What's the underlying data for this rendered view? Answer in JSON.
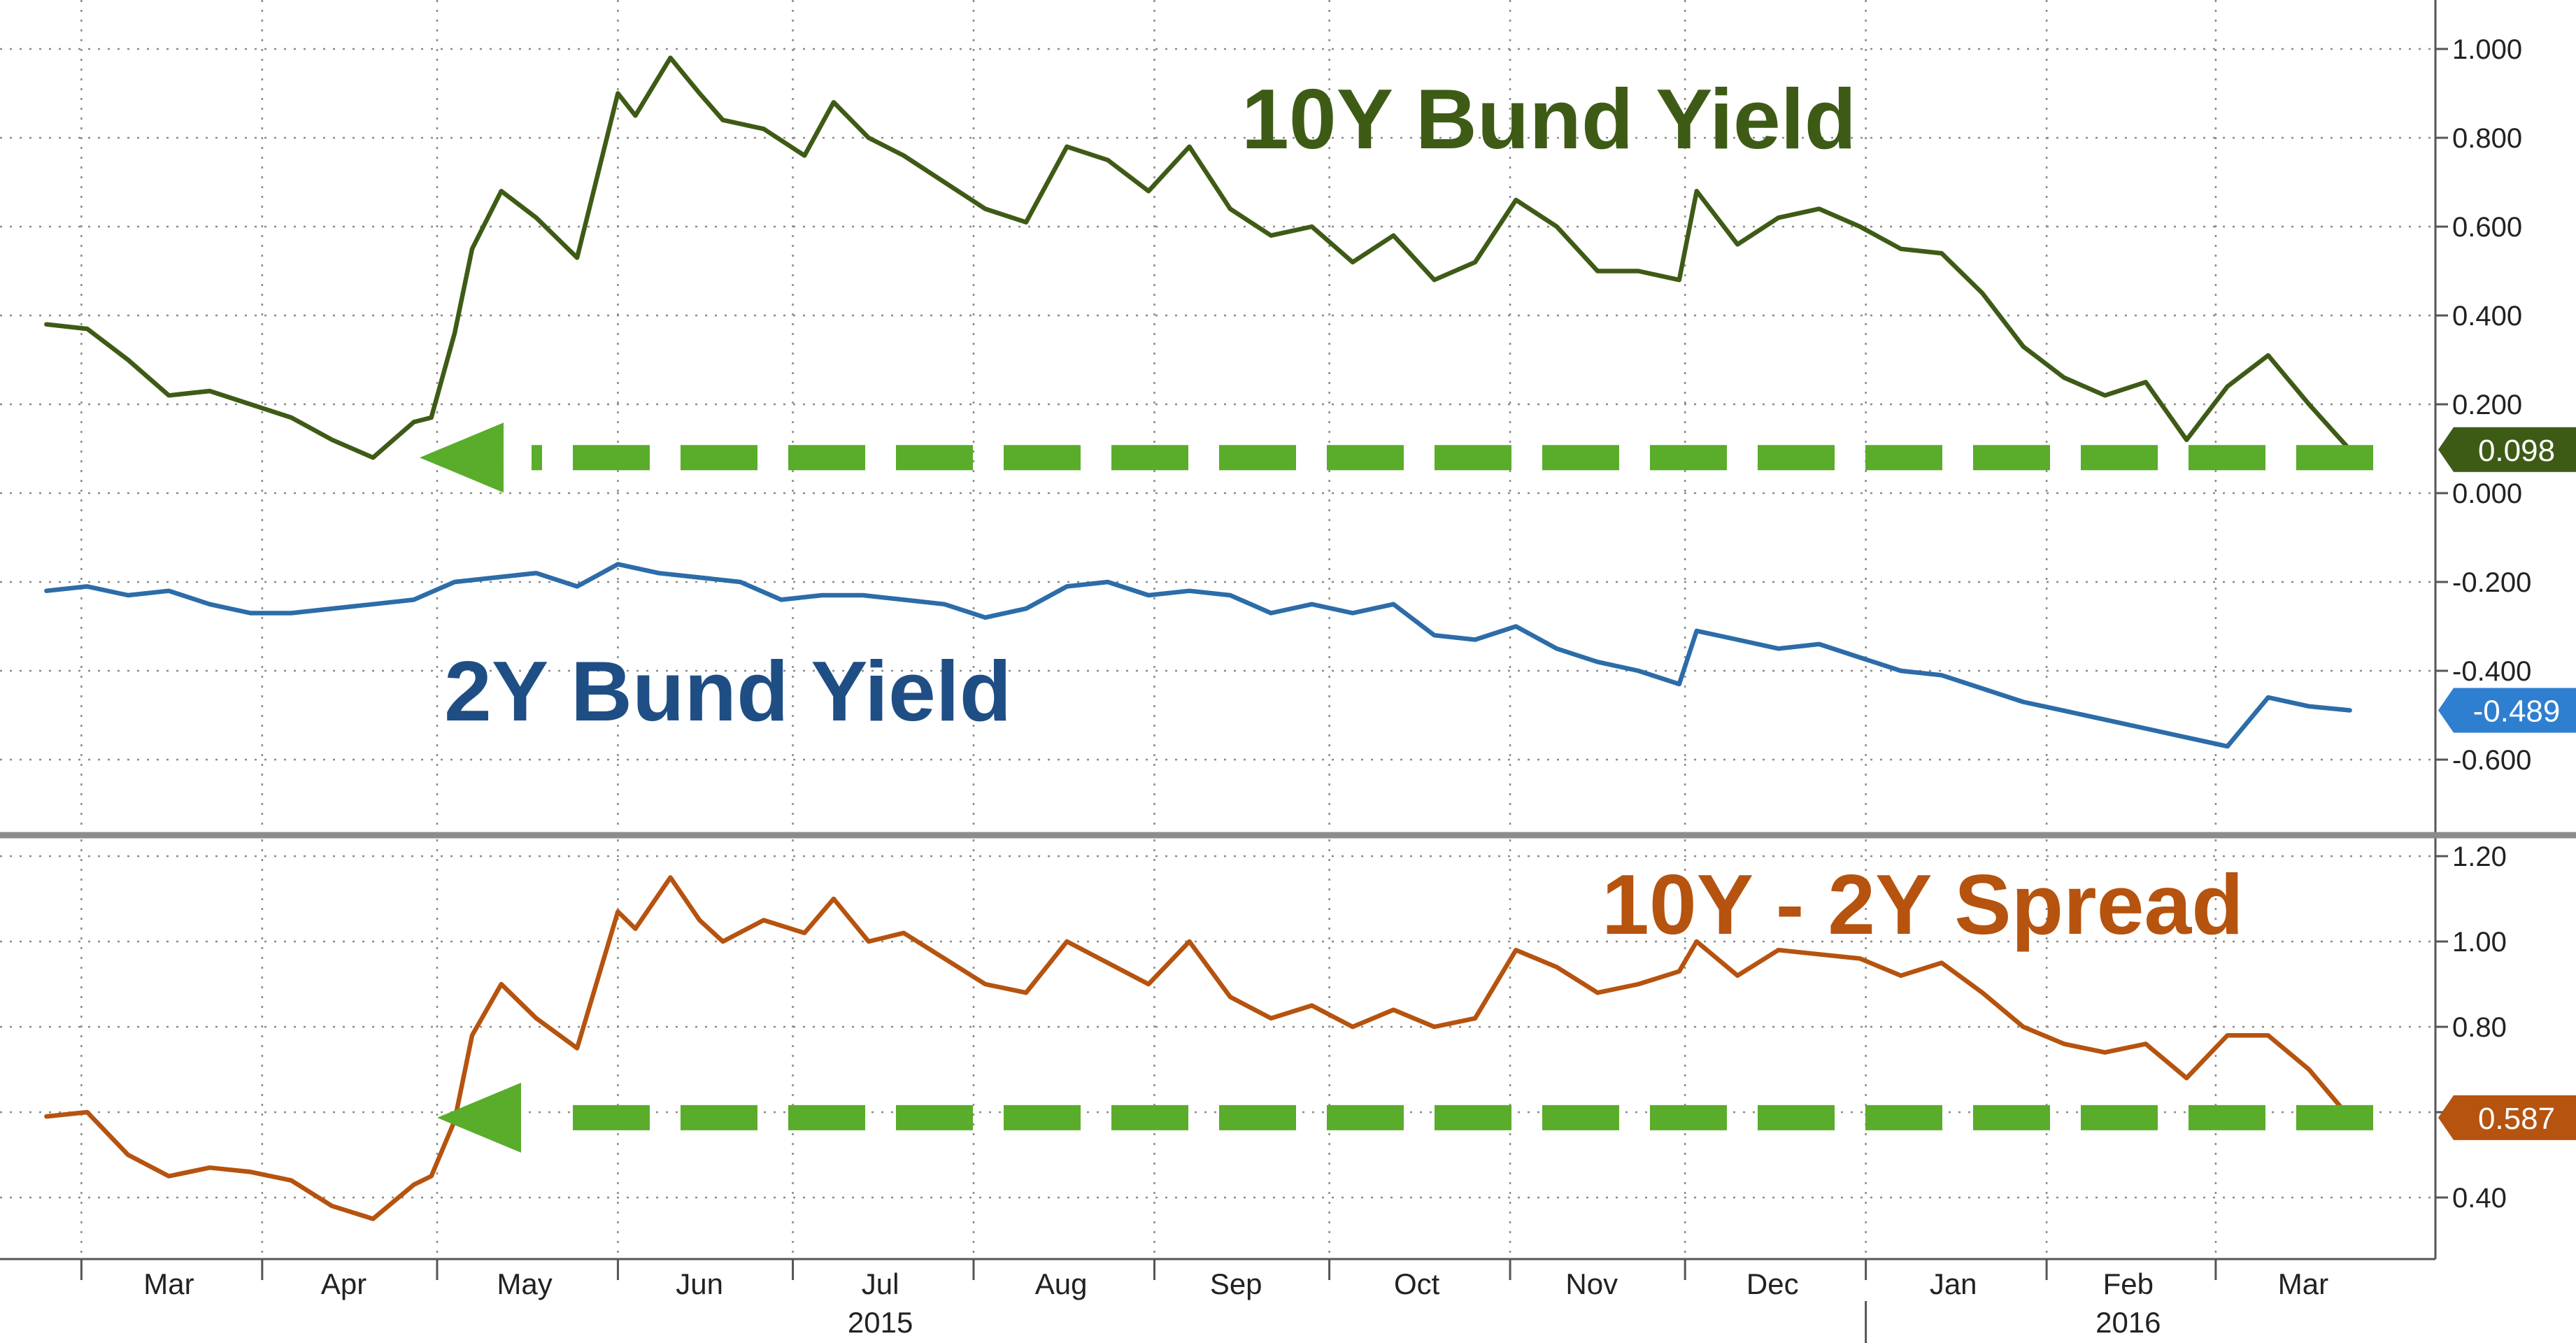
{
  "chart_data": [
    {
      "type": "line",
      "panel": "top",
      "ylim": [
        -0.75,
        1.1
      ],
      "yticks": [
        1.0,
        0.8,
        0.6,
        0.4,
        0.2,
        0.0,
        -0.2,
        -0.4,
        -0.6
      ],
      "ytick_labels": [
        "1.000",
        "0.800",
        "0.600",
        "0.400",
        "0.200",
        "0.000",
        "-0.200",
        "-0.400",
        "-0.600"
      ],
      "grid": true,
      "series": [
        {
          "name": "10Y Bund Yield",
          "color": "#3e5b16",
          "last_value_label": "0.098",
          "label_color": "#3e5b16",
          "x": [
            "2015-02-23",
            "2015-03-02",
            "2015-03-09",
            "2015-03-16",
            "2015-03-23",
            "2015-03-30",
            "2015-04-06",
            "2015-04-13",
            "2015-04-20",
            "2015-04-27",
            "2015-04-30",
            "2015-05-04",
            "2015-05-07",
            "2015-05-12",
            "2015-05-18",
            "2015-05-25",
            "2015-06-01",
            "2015-06-04",
            "2015-06-10",
            "2015-06-15",
            "2015-06-19",
            "2015-06-26",
            "2015-07-03",
            "2015-07-08",
            "2015-07-14",
            "2015-07-20",
            "2015-07-27",
            "2015-08-03",
            "2015-08-10",
            "2015-08-17",
            "2015-08-24",
            "2015-08-31",
            "2015-09-07",
            "2015-09-14",
            "2015-09-21",
            "2015-09-28",
            "2015-10-05",
            "2015-10-12",
            "2015-10-19",
            "2015-10-26",
            "2015-11-02",
            "2015-11-09",
            "2015-11-16",
            "2015-11-23",
            "2015-11-30",
            "2015-12-03",
            "2015-12-10",
            "2015-12-17",
            "2015-12-24",
            "2015-12-31",
            "2016-01-07",
            "2016-01-14",
            "2016-01-21",
            "2016-01-28",
            "2016-02-04",
            "2016-02-11",
            "2016-02-18",
            "2016-02-25",
            "2016-03-03",
            "2016-03-10",
            "2016-03-17",
            "2016-03-24"
          ],
          "y": [
            0.38,
            0.37,
            0.3,
            0.22,
            0.23,
            0.2,
            0.17,
            0.12,
            0.08,
            0.16,
            0.17,
            0.36,
            0.55,
            0.68,
            0.62,
            0.53,
            0.9,
            0.85,
            0.98,
            0.9,
            0.84,
            0.82,
            0.76,
            0.88,
            0.8,
            0.76,
            0.7,
            0.64,
            0.61,
            0.78,
            0.75,
            0.68,
            0.78,
            0.64,
            0.58,
            0.6,
            0.52,
            0.58,
            0.48,
            0.52,
            0.66,
            0.6,
            0.5,
            0.5,
            0.48,
            0.68,
            0.56,
            0.62,
            0.64,
            0.6,
            0.55,
            0.54,
            0.45,
            0.33,
            0.26,
            0.22,
            0.25,
            0.12,
            0.24,
            0.31,
            0.2,
            0.098
          ]
        },
        {
          "name": "2Y Bund Yield",
          "color": "#2c6ca8",
          "last_value_label": "-0.489",
          "label_color": "#2f7fd1",
          "x": [
            "2015-02-23",
            "2015-03-02",
            "2015-03-09",
            "2015-03-16",
            "2015-03-23",
            "2015-03-30",
            "2015-04-06",
            "2015-04-13",
            "2015-04-20",
            "2015-04-27",
            "2015-05-04",
            "2015-05-11",
            "2015-05-18",
            "2015-05-25",
            "2015-06-01",
            "2015-06-08",
            "2015-06-15",
            "2015-06-22",
            "2015-06-29",
            "2015-07-06",
            "2015-07-13",
            "2015-07-20",
            "2015-07-27",
            "2015-08-03",
            "2015-08-10",
            "2015-08-17",
            "2015-08-24",
            "2015-08-31",
            "2015-09-07",
            "2015-09-14",
            "2015-09-21",
            "2015-09-28",
            "2015-10-05",
            "2015-10-12",
            "2015-10-19",
            "2015-10-26",
            "2015-11-02",
            "2015-11-09",
            "2015-11-16",
            "2015-11-23",
            "2015-11-30",
            "2015-12-03",
            "2015-12-10",
            "2015-12-17",
            "2015-12-24",
            "2015-12-31",
            "2016-01-07",
            "2016-01-14",
            "2016-01-21",
            "2016-01-28",
            "2016-02-04",
            "2016-02-11",
            "2016-02-18",
            "2016-02-25",
            "2016-03-03",
            "2016-03-10",
            "2016-03-17",
            "2016-03-24"
          ],
          "y": [
            -0.22,
            -0.21,
            -0.23,
            -0.22,
            -0.25,
            -0.27,
            -0.27,
            -0.26,
            -0.25,
            -0.24,
            -0.2,
            -0.19,
            -0.18,
            -0.21,
            -0.16,
            -0.18,
            -0.19,
            -0.2,
            -0.24,
            -0.23,
            -0.23,
            -0.24,
            -0.25,
            -0.28,
            -0.26,
            -0.21,
            -0.2,
            -0.23,
            -0.22,
            -0.23,
            -0.27,
            -0.25,
            -0.27,
            -0.25,
            -0.32,
            -0.33,
            -0.3,
            -0.35,
            -0.38,
            -0.4,
            -0.43,
            -0.31,
            -0.33,
            -0.35,
            -0.34,
            -0.37,
            -0.4,
            -0.41,
            -0.44,
            -0.47,
            -0.49,
            -0.51,
            -0.53,
            -0.55,
            -0.57,
            -0.46,
            -0.48,
            -0.489
          ]
        }
      ]
    },
    {
      "type": "line",
      "panel": "bottom",
      "ylim": [
        0.3,
        1.25
      ],
      "yticks": [
        1.2,
        1.0,
        0.8,
        0.6,
        0.4
      ],
      "ytick_labels": [
        "1.20",
        "1.00",
        "0.80",
        "",
        "0.40"
      ],
      "grid": true,
      "series": [
        {
          "name": "10Y - 2Y Spread",
          "color": "#b5530f",
          "last_value_label": "0.587",
          "label_color": "#b5530f",
          "x": [
            "2015-02-23",
            "2015-03-02",
            "2015-03-09",
            "2015-03-16",
            "2015-03-23",
            "2015-03-30",
            "2015-04-06",
            "2015-04-13",
            "2015-04-20",
            "2015-04-27",
            "2015-04-30",
            "2015-05-04",
            "2015-05-07",
            "2015-05-12",
            "2015-05-18",
            "2015-05-25",
            "2015-06-01",
            "2015-06-04",
            "2015-06-10",
            "2015-06-15",
            "2015-06-19",
            "2015-06-26",
            "2015-07-03",
            "2015-07-08",
            "2015-07-14",
            "2015-07-20",
            "2015-07-27",
            "2015-08-03",
            "2015-08-10",
            "2015-08-17",
            "2015-08-24",
            "2015-08-31",
            "2015-09-07",
            "2015-09-14",
            "2015-09-21",
            "2015-09-28",
            "2015-10-05",
            "2015-10-12",
            "2015-10-19",
            "2015-10-26",
            "2015-11-02",
            "2015-11-09",
            "2015-11-16",
            "2015-11-23",
            "2015-11-30",
            "2015-12-03",
            "2015-12-10",
            "2015-12-17",
            "2015-12-24",
            "2015-12-31",
            "2016-01-07",
            "2016-01-14",
            "2016-01-21",
            "2016-01-28",
            "2016-02-04",
            "2016-02-11",
            "2016-02-18",
            "2016-02-25",
            "2016-03-03",
            "2016-03-10",
            "2016-03-17",
            "2016-03-24"
          ],
          "y": [
            0.59,
            0.6,
            0.5,
            0.45,
            0.47,
            0.46,
            0.44,
            0.38,
            0.35,
            0.43,
            0.45,
            0.58,
            0.78,
            0.9,
            0.82,
            0.75,
            1.07,
            1.03,
            1.15,
            1.05,
            1.0,
            1.05,
            1.02,
            1.1,
            1.0,
            1.02,
            0.96,
            0.9,
            0.88,
            1.0,
            0.95,
            0.9,
            1.0,
            0.87,
            0.82,
            0.85,
            0.8,
            0.84,
            0.8,
            0.82,
            0.98,
            0.94,
            0.88,
            0.9,
            0.93,
            1.0,
            0.92,
            0.98,
            0.97,
            0.96,
            0.92,
            0.95,
            0.88,
            0.8,
            0.76,
            0.74,
            0.76,
            0.68,
            0.78,
            0.78,
            0.7,
            0.587
          ]
        }
      ]
    }
  ],
  "x_axis": {
    "start": "2015-02-16",
    "end": "2016-03-31",
    "months": [
      {
        "label": "Mar",
        "date": "2015-03-16"
      },
      {
        "label": "Apr",
        "date": "2015-04-15"
      },
      {
        "label": "May",
        "date": "2015-05-16"
      },
      {
        "label": "Jun",
        "date": "2015-06-15"
      },
      {
        "label": "Jul",
        "date": "2015-07-16"
      },
      {
        "label": "Aug",
        "date": "2015-08-16"
      },
      {
        "label": "Sep",
        "date": "2015-09-15"
      },
      {
        "label": "Oct",
        "date": "2015-10-16"
      },
      {
        "label": "Nov",
        "date": "2015-11-15"
      },
      {
        "label": "Dec",
        "date": "2015-12-16"
      },
      {
        "label": "Jan",
        "date": "2016-01-16"
      },
      {
        "label": "Feb",
        "date": "2016-02-15"
      },
      {
        "label": "Mar",
        "date": "2016-03-16"
      }
    ],
    "month_boundaries": [
      "2015-03-01",
      "2015-04-01",
      "2015-05-01",
      "2015-06-01",
      "2015-07-01",
      "2015-08-01",
      "2015-09-01",
      "2015-10-01",
      "2015-11-01",
      "2015-12-01",
      "2016-01-01",
      "2016-02-01",
      "2016-03-01"
    ],
    "years": [
      {
        "label": "2015",
        "date": "2015-07-16"
      },
      {
        "label": "2016",
        "date": "2016-02-15"
      }
    ],
    "year_boundary": "2016-01-01"
  },
  "annotations": {
    "label_10y": "10Y Bund Yield",
    "label_2y": "2Y Bund Yield",
    "label_spread": "10Y - 2Y Spread",
    "arrow_color": "#5aac2b",
    "arrow_top": {
      "from_date": "2016-03-28",
      "to_date": "2015-04-28",
      "value": 0.08
    },
    "arrow_bottom": {
      "from_date": "2016-03-28",
      "to_date": "2015-05-01",
      "value": 0.587
    }
  }
}
